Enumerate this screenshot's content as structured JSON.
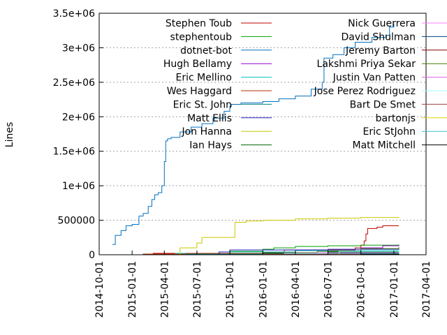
{
  "chart_data": {
    "type": "line",
    "title": "",
    "xlabel": "",
    "ylabel": "Lines",
    "ylim": [
      0,
      3500000
    ],
    "xlim": [
      "2014-10-01",
      "2017-04-01"
    ],
    "grid": "y-dotted",
    "legend_position": "top, two columns",
    "y_ticks": [
      {
        "value": 0,
        "label": "0"
      },
      {
        "value": 500000,
        "label": "500000"
      },
      {
        "value": 1000000,
        "label": "1e+06"
      },
      {
        "value": 1500000,
        "label": "1.5e+06"
      },
      {
        "value": 2000000,
        "label": "2e+06"
      },
      {
        "value": 2500000,
        "label": "2.5e+06"
      },
      {
        "value": 3000000,
        "label": "3e+06"
      },
      {
        "value": 3500000,
        "label": "3.5e+06"
      }
    ],
    "x_ticks": [
      {
        "value": "2014-10-01",
        "label": "2014-10-01"
      },
      {
        "value": "2015-01-01",
        "label": "2015-01-01"
      },
      {
        "value": "2015-04-01",
        "label": "2015-04-01"
      },
      {
        "value": "2015-07-01",
        "label": "2015-07-01"
      },
      {
        "value": "2015-10-01",
        "label": "2015-10-01"
      },
      {
        "value": "2016-01-01",
        "label": "2016-01-01"
      },
      {
        "value": "2016-04-01",
        "label": "2016-04-01"
      },
      {
        "value": "2016-07-01",
        "label": "2016-07-01"
      },
      {
        "value": "2016-10-01",
        "label": "2016-10-01"
      },
      {
        "value": "2017-01-01",
        "label": "2017-01-01"
      },
      {
        "value": "2017-04-01",
        "label": "2017-04-01"
      }
    ],
    "series": [
      {
        "name": "Stephen Toub",
        "color": "#c00000",
        "points": [
          [
            "2014-12-20",
            0
          ],
          [
            "2015-03-01",
            20000
          ],
          [
            "2015-09-01",
            40000
          ],
          [
            "2016-03-01",
            70000
          ],
          [
            "2016-09-15",
            100000
          ],
          [
            "2016-10-01",
            140000
          ],
          [
            "2016-10-10",
            200000
          ],
          [
            "2016-10-15",
            300000
          ],
          [
            "2016-10-20",
            380000
          ],
          [
            "2016-11-15",
            400000
          ],
          [
            "2016-12-01",
            420000
          ],
          [
            "2017-01-15",
            420000
          ]
        ]
      },
      {
        "name": "stephentoub",
        "color": "#00a000",
        "points": [
          [
            "2015-04-01",
            0
          ],
          [
            "2015-07-01",
            20000
          ],
          [
            "2015-10-01",
            50000
          ],
          [
            "2016-01-01",
            80000
          ],
          [
            "2016-02-01",
            100000
          ],
          [
            "2016-04-01",
            120000
          ],
          [
            "2016-07-01",
            130000
          ],
          [
            "2016-10-01",
            140000
          ],
          [
            "2017-01-15",
            150000
          ]
        ]
      },
      {
        "name": "dotnet-bot",
        "color": "#0070c0",
        "points": [
          [
            "2014-11-07",
            150000
          ],
          [
            "2014-11-15",
            280000
          ],
          [
            "2014-12-01",
            350000
          ],
          [
            "2014-12-15",
            420000
          ],
          [
            "2015-01-01",
            440000
          ],
          [
            "2015-01-20",
            560000
          ],
          [
            "2015-02-01",
            600000
          ],
          [
            "2015-02-15",
            700000
          ],
          [
            "2015-02-25",
            800000
          ],
          [
            "2015-03-05",
            870000
          ],
          [
            "2015-03-15",
            900000
          ],
          [
            "2015-03-25",
            1000000
          ],
          [
            "2015-04-01",
            1350000
          ],
          [
            "2015-04-05",
            1650000
          ],
          [
            "2015-04-10",
            1680000
          ],
          [
            "2015-04-20",
            1700000
          ],
          [
            "2015-05-15",
            1780000
          ],
          [
            "2015-06-15",
            1850000
          ],
          [
            "2015-07-15",
            1900000
          ],
          [
            "2015-08-15",
            1980000
          ],
          [
            "2015-09-15",
            2080000
          ],
          [
            "2015-10-01",
            2150000
          ],
          [
            "2015-10-05",
            2180000
          ],
          [
            "2015-11-01",
            2200000
          ],
          [
            "2016-01-01",
            2220000
          ],
          [
            "2016-02-15",
            2260000
          ],
          [
            "2016-04-01",
            2300000
          ],
          [
            "2016-05-15",
            2400000
          ],
          [
            "2016-06-15",
            2500000
          ],
          [
            "2016-06-20",
            2850000
          ],
          [
            "2016-07-15",
            2900000
          ],
          [
            "2016-08-15",
            3000000
          ],
          [
            "2016-09-15",
            3080000
          ],
          [
            "2016-11-01",
            3150000
          ],
          [
            "2016-12-10",
            3180000
          ],
          [
            "2016-12-20",
            3300000
          ],
          [
            "2017-01-01",
            3350000
          ]
        ]
      },
      {
        "name": "Hugh Bellamy",
        "color": "#9400d3",
        "points": [
          [
            "2016-01-01",
            0
          ],
          [
            "2016-04-01",
            30000
          ],
          [
            "2016-07-01",
            60000
          ],
          [
            "2016-10-01",
            100000
          ],
          [
            "2016-12-01",
            130000
          ],
          [
            "2017-01-15",
            140000
          ]
        ]
      },
      {
        "name": "Eric Mellino",
        "color": "#00c0c0",
        "points": [
          [
            "2015-04-01",
            0
          ],
          [
            "2015-05-01",
            20000
          ],
          [
            "2015-10-01",
            40000
          ],
          [
            "2016-04-01",
            60000
          ],
          [
            "2017-01-15",
            80000
          ]
        ]
      },
      {
        "name": "Wes Haggard",
        "color": "#b03000",
        "points": [
          [
            "2014-12-20",
            0
          ],
          [
            "2015-02-01",
            10000
          ],
          [
            "2015-06-01",
            20000
          ],
          [
            "2016-01-01",
            30000
          ],
          [
            "2017-01-15",
            40000
          ]
        ]
      },
      {
        "name": "Eric St. John",
        "color": "#008080",
        "points": [
          [
            "2015-01-15",
            0
          ],
          [
            "2015-06-01",
            10000
          ],
          [
            "2016-01-01",
            25000
          ],
          [
            "2017-01-15",
            35000
          ]
        ]
      },
      {
        "name": "Matt Ellis",
        "color": "#2020c0",
        "points": [
          [
            "2015-06-01",
            0
          ],
          [
            "2015-09-01",
            40000
          ],
          [
            "2015-10-01",
            70000
          ],
          [
            "2016-07-01",
            80000
          ],
          [
            "2017-01-15",
            90000
          ]
        ]
      },
      {
        "name": "Jon Hanna",
        "color": "#c8c800",
        "points": [
          [
            "2015-04-15",
            0
          ],
          [
            "2015-05-15",
            100000
          ],
          [
            "2015-07-01",
            170000
          ],
          [
            "2015-07-15",
            250000
          ],
          [
            "2015-10-15",
            470000
          ],
          [
            "2015-11-15",
            490000
          ],
          [
            "2016-01-01",
            500000
          ],
          [
            "2016-04-01",
            520000
          ],
          [
            "2016-07-01",
            530000
          ],
          [
            "2016-10-01",
            540000
          ],
          [
            "2017-01-15",
            550000
          ]
        ]
      },
      {
        "name": "Ian Hays",
        "color": "#006400",
        "points": [
          [
            "2015-10-01",
            0
          ],
          [
            "2016-01-01",
            20000
          ],
          [
            "2016-07-01",
            40000
          ],
          [
            "2017-01-15",
            60000
          ]
        ]
      },
      {
        "name": "Nick Guerrera",
        "color": "#ff80ff",
        "points": [
          [
            "2015-09-01",
            0
          ],
          [
            "2016-03-01",
            10000
          ],
          [
            "2017-01-15",
            20000
          ]
        ]
      },
      {
        "name": "David Shulman",
        "color": "#004080",
        "points": [
          [
            "2015-12-01",
            0
          ],
          [
            "2016-06-01",
            20000
          ],
          [
            "2017-01-15",
            50000
          ]
        ]
      },
      {
        "name": "Jeremy Barton",
        "color": "#800000",
        "points": [
          [
            "2016-01-15",
            0
          ],
          [
            "2016-07-01",
            15000
          ],
          [
            "2017-01-15",
            30000
          ]
        ]
      },
      {
        "name": "Lakshmi Priya Sekar",
        "color": "#408000",
        "points": [
          [
            "2016-01-01",
            0
          ],
          [
            "2016-06-01",
            50000
          ],
          [
            "2016-10-01",
            90000
          ],
          [
            "2017-01-15",
            110000
          ]
        ]
      },
      {
        "name": "Justin Van Patten",
        "color": "#e060e0",
        "points": [
          [
            "2015-10-15",
            0
          ],
          [
            "2016-06-01",
            30000
          ],
          [
            "2017-01-15",
            60000
          ]
        ]
      },
      {
        "name": "Jose Perez Rodriguez",
        "color": "#a0ffff",
        "points": [
          [
            "2015-11-01",
            0
          ],
          [
            "2016-03-01",
            20000
          ],
          [
            "2016-08-01",
            50000
          ],
          [
            "2017-01-15",
            70000
          ]
        ]
      },
      {
        "name": "Bart De Smet",
        "color": "#a04040",
        "points": [
          [
            "2015-05-01",
            0
          ],
          [
            "2016-01-01",
            10000
          ],
          [
            "2017-01-15",
            20000
          ]
        ]
      },
      {
        "name": "bartonjs",
        "color": "#e0d000",
        "points": [
          [
            "2016-02-01",
            0
          ],
          [
            "2016-08-01",
            20000
          ],
          [
            "2017-01-15",
            35000
          ]
        ]
      },
      {
        "name": "Eric StJohn",
        "color": "#40c0d0",
        "points": [
          [
            "2016-01-01",
            0
          ],
          [
            "2016-07-01",
            20000
          ],
          [
            "2017-01-15",
            40000
          ]
        ]
      },
      {
        "name": "Matt Mitchell",
        "color": "#000000",
        "points": [
          [
            "2016-04-01",
            0
          ],
          [
            "2016-10-01",
            10000
          ],
          [
            "2017-01-15",
            15000
          ]
        ]
      }
    ]
  }
}
